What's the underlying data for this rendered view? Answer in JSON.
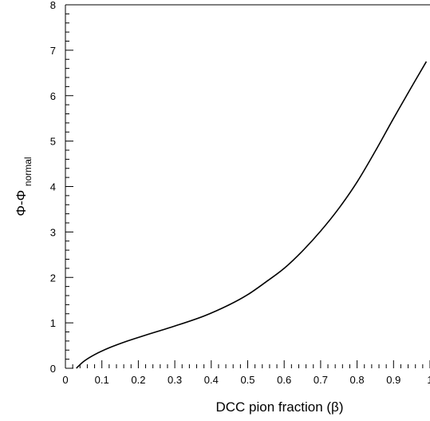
{
  "chart_data": {
    "type": "line",
    "title": "",
    "xlabel": "DCC pion fraction (β)",
    "ylabel_main": "Φ-Φ",
    "ylabel_sub": "normal",
    "xlim": [
      0,
      1
    ],
    "ylim": [
      0,
      8
    ],
    "x_ticks": [
      0,
      0.1,
      0.2,
      0.3,
      0.4,
      0.5,
      0.6,
      0.7,
      0.8,
      0.9,
      1
    ],
    "x_tick_labels": [
      "0",
      "0.1",
      "0.2",
      "0.3",
      "0.4",
      "0.5",
      "0.6",
      "0.7",
      "0.8",
      "0.9",
      "1"
    ],
    "y_ticks": [
      0,
      1,
      2,
      3,
      4,
      5,
      6,
      7,
      8
    ],
    "y_tick_labels": [
      "0",
      "1",
      "2",
      "3",
      "4",
      "5",
      "6",
      "7",
      "8"
    ],
    "grid": false,
    "legend": "none",
    "series": [
      {
        "color": "#000000",
        "x": [
          0.03,
          0.05,
          0.08,
          0.12,
          0.17,
          0.22,
          0.3,
          0.38,
          0.45,
          0.5,
          0.55,
          0.6,
          0.65,
          0.7,
          0.75,
          0.8,
          0.85,
          0.9,
          0.95,
          0.99
        ],
        "y": [
          0.0,
          0.15,
          0.3,
          0.45,
          0.6,
          0.73,
          0.93,
          1.15,
          1.4,
          1.62,
          1.9,
          2.2,
          2.58,
          3.02,
          3.52,
          4.1,
          4.78,
          5.5,
          6.2,
          6.75
        ]
      }
    ]
  }
}
